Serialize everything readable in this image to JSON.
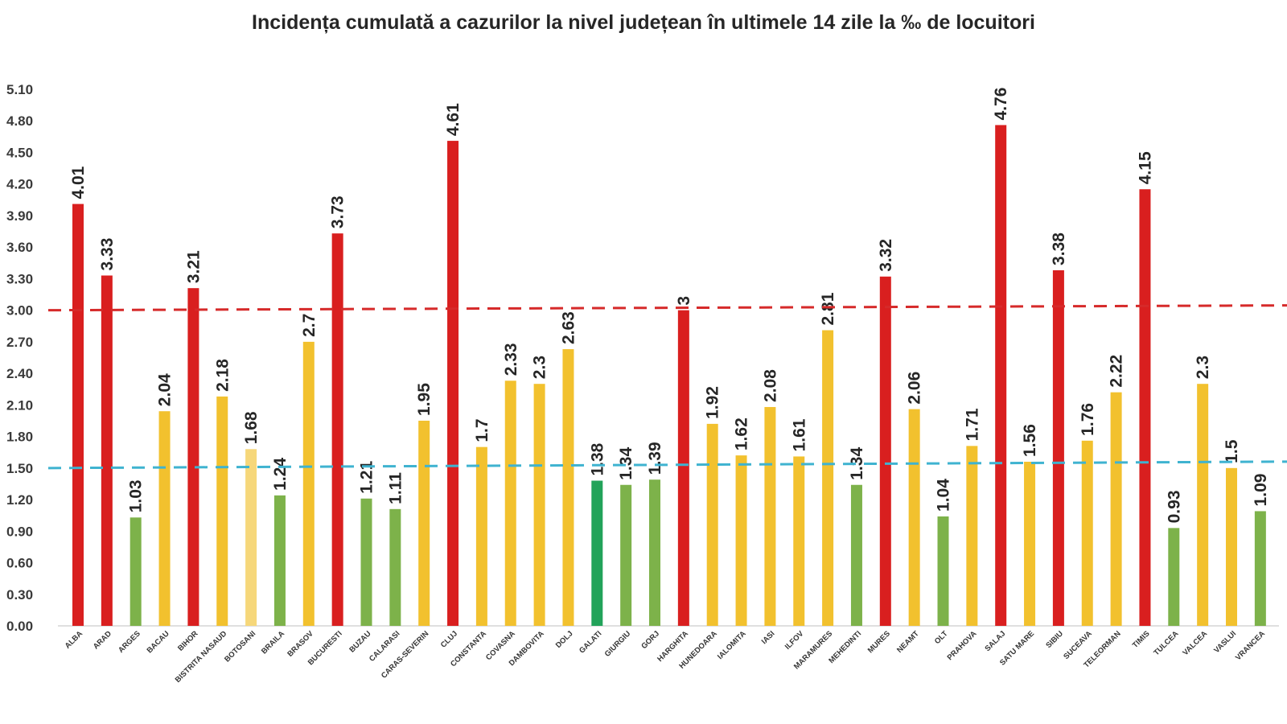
{
  "chart_data": {
    "type": "bar",
    "title": "Incidența cumulată a cazurilor la nivel județean în ultimele 14 zile la ‰ de locuitori",
    "xlabel": "",
    "ylabel": "",
    "ylim": [
      0,
      5.1
    ],
    "yticks": [
      "0.00",
      "0.30",
      "0.60",
      "0.90",
      "1.20",
      "1.50",
      "1.80",
      "2.10",
      "2.40",
      "2.70",
      "3.00",
      "3.30",
      "3.60",
      "3.90",
      "4.20",
      "4.50",
      "4.80",
      "5.10"
    ],
    "grid": false,
    "legend": "none",
    "categories": [
      "ALBA",
      "ARAD",
      "ARGES",
      "BACAU",
      "BIHOR",
      "BISTRITA NASAUD",
      "BOTOSANI",
      "BRAILA",
      "BRASOV",
      "BUCURESTI",
      "BUZAU",
      "CALARASI",
      "CARAS-SEVERIN",
      "CLUJ",
      "CONSTANTA",
      "COVASNA",
      "DAMBOVITA",
      "DOLJ",
      "GALATI",
      "GIURGIU",
      "GORJ",
      "HARGHITA",
      "HUNEDOARA",
      "IALOMITA",
      "IASI",
      "ILFOV",
      "MARAMURES",
      "MEHEDINTI",
      "MURES",
      "NEAMT",
      "OLT",
      "PRAHOVA",
      "SALAJ",
      "SATU MARE",
      "SIBIU",
      "SUCEAVA",
      "TELEORMAN",
      "TIMIS",
      "TULCEA",
      "VALCEA",
      "VASLUI",
      "VRANCEA"
    ],
    "values": [
      4.01,
      3.33,
      1.03,
      2.04,
      3.21,
      2.18,
      1.68,
      1.24,
      2.7,
      3.73,
      1.21,
      1.11,
      1.95,
      4.61,
      1.7,
      2.33,
      2.3,
      2.63,
      1.38,
      1.34,
      1.39,
      3,
      1.92,
      1.62,
      2.08,
      1.61,
      2.81,
      1.34,
      3.32,
      2.06,
      1.04,
      1.71,
      4.76,
      1.56,
      3.38,
      1.76,
      2.22,
      4.15,
      0.93,
      2.3,
      1.5,
      1.09
    ],
    "value_labels": [
      "4.01",
      "3.33",
      "1.03",
      "2.04",
      "3.21",
      "2.18",
      "1.68",
      "1.24",
      "2.7",
      "3.73",
      "1.21",
      "1.11",
      "1.95",
      "4.61",
      "1.7",
      "2.33",
      "2.3",
      "2.63",
      "1.38",
      "1.34",
      "1.39",
      "3",
      "1.92",
      "1.62",
      "2.08",
      "1.61",
      "2.81",
      "1.34",
      "3.32",
      "2.06",
      "1.04",
      "1.71",
      "4.76",
      "1.56",
      "3.38",
      "1.76",
      "2.22",
      "4.15",
      "0.93",
      "2.3",
      "1.5",
      "1.09"
    ],
    "bar_colors": [
      "#d91f1f",
      "#d91f1f",
      "#7db24a",
      "#f2c12e",
      "#d91f1f",
      "#f2c12e",
      "#f6d77a",
      "#7db24a",
      "#f2c12e",
      "#d91f1f",
      "#7db24a",
      "#7db24a",
      "#f2c12e",
      "#d91f1f",
      "#f2c12e",
      "#f2c12e",
      "#f2c12e",
      "#f2c12e",
      "#22a35a",
      "#7db24a",
      "#7db24a",
      "#d91f1f",
      "#f2c12e",
      "#f2c12e",
      "#f2c12e",
      "#f2c12e",
      "#f2c12e",
      "#7db24a",
      "#d91f1f",
      "#f2c12e",
      "#7db24a",
      "#f2c12e",
      "#d91f1f",
      "#f2c12e",
      "#d91f1f",
      "#f2c12e",
      "#f2c12e",
      "#d91f1f",
      "#7db24a",
      "#f2c12e",
      "#f2c12e",
      "#7db24a"
    ],
    "reference_lines": [
      {
        "value": 3.0,
        "color": "#d62a2a",
        "style": "dashed"
      },
      {
        "value": 1.5,
        "color": "#3fb3d0",
        "style": "dashed"
      }
    ]
  }
}
